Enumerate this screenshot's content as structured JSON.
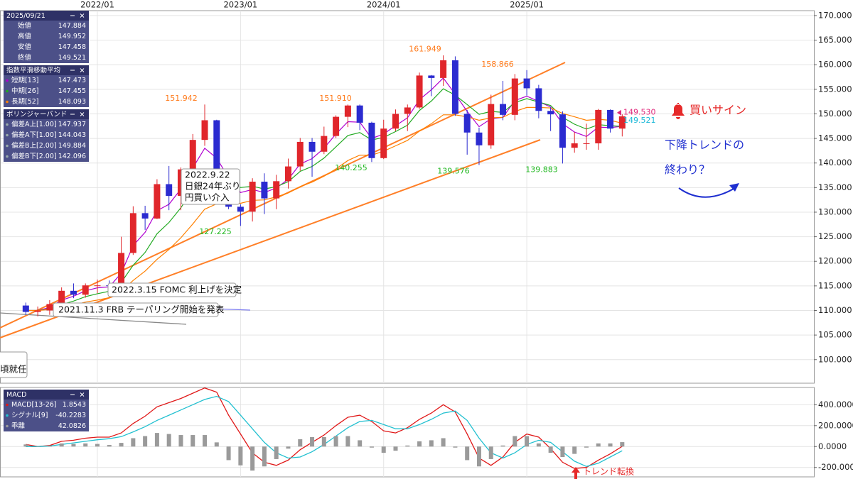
{
  "chart_data": [
    {
      "type": "candlestick",
      "categories": [
        null,
        null,
        null,
        null,
        null,
        null,
        "2022/01",
        null,
        null,
        null,
        null,
        null,
        null,
        null,
        null,
        null,
        null,
        null,
        "2023/01",
        null,
        null,
        null,
        null,
        null,
        null,
        null,
        null,
        null,
        null,
        null,
        "2024/01",
        null,
        null,
        null,
        null,
        null,
        null,
        null,
        null,
        null,
        null,
        null,
        "2025/01",
        null,
        null,
        null,
        null,
        null,
        null,
        null,
        null
      ],
      "open": [
        111.0,
        109.7,
        110.0,
        111.3,
        114.0,
        113.2,
        115.1,
        115.1,
        115.0,
        121.7,
        129.8,
        128.7,
        135.7,
        133.3,
        138.7,
        144.7,
        148.7,
        138.1,
        131.1,
        130.1,
        136.2,
        132.8,
        136.3,
        139.3,
        144.3,
        142.3,
        145.5,
        149.4,
        151.7,
        148.2,
        141.0,
        147.0,
        150.0,
        151.3,
        157.8,
        157.3,
        160.9,
        150.0,
        146.2,
        143.6,
        152.0,
        149.8,
        157.2,
        155.2,
        150.6,
        149.9,
        143.1,
        144.0,
        144.0,
        150.8,
        147.0
      ],
      "high": [
        111.6,
        110.8,
        112.1,
        114.7,
        115.5,
        115.5,
        116.3,
        116.1,
        125.0,
        131.2,
        131.3,
        136.7,
        139.4,
        139.1,
        145.9,
        151.9,
        148.8,
        138.2,
        131.6,
        136.9,
        137.9,
        137.6,
        140.9,
        145.1,
        145.1,
        147.4,
        149.7,
        151.9,
        151.9,
        148.4,
        148.8,
        150.9,
        151.9,
        158.4,
        157.9,
        161.9,
        161.7,
        150.8,
        147.2,
        153.9,
        156.7,
        158.1,
        158.9,
        155.9,
        151.3,
        150.5,
        146.3,
        148.0,
        151.0,
        150.9,
        149.9
      ],
      "low": [
        109.1,
        108.8,
        109.1,
        111.0,
        112.5,
        112.6,
        113.5,
        114.2,
        114.7,
        121.3,
        126.4,
        128.6,
        130.4,
        130.4,
        138.0,
        143.5,
        137.7,
        130.6,
        127.2,
        128.1,
        129.6,
        130.6,
        134.8,
        138.4,
        137.2,
        141.8,
        145.1,
        147.3,
        146.7,
        140.2,
        140.8,
        146.5,
        146.5,
        151.0,
        153.6,
        155.7,
        149.6,
        141.7,
        139.6,
        142.9,
        148.7,
        148.7,
        153.7,
        149.1,
        146.5,
        139.9,
        142.1,
        142.7,
        142.7,
        146.2,
        145.4
      ],
      "close": [
        109.7,
        110.0,
        111.3,
        114.0,
        113.2,
        115.1,
        115.1,
        115.0,
        121.7,
        129.8,
        128.7,
        135.7,
        133.3,
        138.7,
        144.7,
        148.7,
        138.1,
        131.1,
        130.1,
        136.2,
        132.8,
        136.3,
        139.3,
        144.3,
        142.3,
        145.5,
        149.4,
        151.7,
        148.2,
        141.0,
        147.0,
        150.0,
        151.3,
        157.8,
        157.3,
        160.9,
        150.0,
        146.2,
        143.6,
        152.0,
        149.8,
        157.2,
        155.2,
        150.6,
        149.9,
        143.1,
        144.0,
        144.0,
        150.8,
        147.0,
        149.5
      ],
      "up_color": "#e0262b",
      "down_color": "#2b2bd0",
      "series": [
        {
          "name": "短期[13]",
          "color": "#b000d0",
          "values": [
            110.0,
            110.0,
            110.6,
            112.1,
            112.9,
            114.0,
            114.6,
            114.8,
            117.6,
            123.2,
            125.9,
            130.3,
            131.6,
            134.7,
            139.0,
            143.0,
            141.0,
            137.0,
            134.0,
            134.6,
            134.0,
            134.9,
            136.7,
            139.8,
            140.9,
            143.0,
            145.9,
            148.4,
            148.3,
            145.0,
            145.9,
            147.6,
            149.2,
            152.9,
            154.9,
            157.3,
            154.0,
            150.5,
            147.4,
            149.0,
            149.3,
            152.7,
            153.6,
            152.5,
            151.4,
            148.0,
            146.3,
            145.4,
            147.3,
            147.2,
            147.473
          ]
        },
        {
          "name": "中期[26]",
          "color": "#22aa22",
          "values": [
            110.0,
            110.0,
            110.3,
            111.2,
            111.9,
            112.8,
            113.4,
            113.9,
            115.7,
            119.2,
            121.8,
            125.6,
            127.9,
            130.9,
            134.5,
            138.4,
            138.3,
            136.5,
            135.0,
            135.3,
            134.7,
            135.2,
            136.2,
            138.3,
            139.3,
            141.0,
            143.3,
            145.6,
            146.2,
            144.7,
            145.2,
            146.4,
            147.7,
            150.7,
            152.6,
            155.1,
            153.8,
            151.9,
            149.9,
            150.5,
            150.3,
            152.3,
            153.1,
            152.4,
            151.7,
            149.3,
            147.9,
            146.9,
            147.8,
            147.6,
            147.455
          ]
        },
        {
          "name": "長期[52]",
          "color": "#ff8000",
          "values": [
            110.0,
            110.0,
            110.2,
            110.7,
            111.1,
            111.7,
            112.1,
            112.6,
            113.9,
            116.1,
            118.0,
            120.4,
            122.4,
            124.8,
            127.6,
            130.6,
            131.7,
            131.8,
            131.8,
            132.4,
            132.5,
            133.1,
            133.9,
            135.2,
            136.1,
            137.3,
            138.8,
            140.5,
            141.6,
            141.6,
            142.4,
            143.5,
            144.6,
            146.5,
            148.0,
            149.8,
            149.8,
            149.4,
            148.7,
            149.2,
            149.3,
            150.5,
            151.3,
            151.3,
            151.2,
            150.1,
            149.4,
            148.7,
            148.9,
            148.7,
            148.093
          ]
        }
      ],
      "ylim": [
        95.2,
        171
      ],
      "yticks": [
        {
          "value": 100,
          "label": "100.000"
        },
        {
          "value": 105,
          "label": "105.000"
        },
        {
          "value": 110,
          "label": "110.000"
        },
        {
          "value": 115,
          "label": "115.000"
        },
        {
          "value": 120,
          "label": "120.000"
        },
        {
          "value": 125,
          "label": "125.000"
        },
        {
          "value": 130,
          "label": "130.000"
        },
        {
          "value": 135,
          "label": "135.000"
        },
        {
          "value": 140,
          "label": "140.000"
        },
        {
          "value": 145,
          "label": "145.000"
        },
        {
          "value": 150,
          "label": "150.000"
        },
        {
          "value": 155,
          "label": "155.000"
        },
        {
          "value": 160,
          "label": "160.000"
        },
        {
          "value": 165,
          "label": "165.000"
        },
        {
          "value": 170,
          "label": "170.000"
        }
      ],
      "grid": true,
      "price_labels": [
        {
          "value": 151.942,
          "label": "151.942",
          "color": "#ff7a1a"
        },
        {
          "value": 151.91,
          "label": "151.910",
          "color": "#ff7a1a"
        },
        {
          "value": 161.949,
          "label": "161.949",
          "color": "#ff7a1a"
        },
        {
          "value": 158.866,
          "label": "158.866",
          "color": "#ff7a1a"
        },
        {
          "value": 127.225,
          "label": "127.225",
          "color": "#22b822"
        },
        {
          "value": 140.255,
          "label": "140.255",
          "color": "#22b822"
        },
        {
          "value": 139.576,
          "label": "139.576",
          "color": "#22b822"
        },
        {
          "value": 139.883,
          "label": "139.883",
          "color": "#22b822"
        }
      ],
      "current_prices": [
        {
          "value": 149.53,
          "label": "149.530",
          "color": "#e0267a"
        },
        {
          "value": 149.521,
          "label": "149.521",
          "color": "#1ab8d8"
        }
      ],
      "annotations": {
        "intervention": [
          "2022.9.22",
          "日銀24年ぶり",
          "円買い介入"
        ],
        "fomc": "2022.3.15 FOMC 利上げを決定",
        "frb": "2021.11.3 FRB テーパリング開始を発表",
        "inaug": "頃就任",
        "buy": "買いサイン",
        "trend_end": [
          "下降トレンドの",
          "終わり？"
        ],
        "turn": "トレンド転換"
      }
    },
    {
      "type": "macd",
      "series": [
        {
          "name": "MACD[13-26]",
          "color": "#e01818",
          "values": [
            20,
            0,
            10,
            50,
            60,
            80,
            90,
            90,
            130,
            220,
            290,
            380,
            420,
            460,
            510,
            560,
            520,
            300,
            120,
            -60,
            -150,
            -180,
            -130,
            -30,
            40,
            110,
            200,
            280,
            300,
            240,
            150,
            130,
            180,
            260,
            320,
            400,
            330,
            120,
            -110,
            -180,
            -100,
            40,
            120,
            90,
            -20,
            -150,
            -210,
            -200,
            -130,
            -70,
            1.8543
          ]
        },
        {
          "name": "シグナル[9]",
          "color": "#22c0d0",
          "values": [
            0,
            0,
            5,
            20,
            35,
            50,
            65,
            75,
            95,
            140,
            190,
            250,
            300,
            350,
            400,
            450,
            480,
            430,
            300,
            170,
            40,
            -60,
            -110,
            -100,
            -50,
            20,
            100,
            180,
            240,
            250,
            210,
            170,
            170,
            210,
            260,
            320,
            340,
            250,
            80,
            -60,
            -110,
            -60,
            20,
            60,
            40,
            -50,
            -140,
            -190,
            -160,
            -100,
            -40.2283
          ]
        },
        {
          "name": "乖離",
          "color": "#9a9a9a",
          "type": "bar",
          "values": [
            20,
            0,
            5,
            30,
            25,
            30,
            25,
            15,
            35,
            80,
            100,
            130,
            120,
            110,
            110,
            110,
            40,
            -130,
            -180,
            -230,
            -190,
            -120,
            -20,
            70,
            90,
            90,
            100,
            100,
            60,
            -10,
            -60,
            -40,
            10,
            50,
            60,
            80,
            -10,
            -130,
            -190,
            -120,
            10,
            100,
            100,
            30,
            -60,
            -100,
            -70,
            -10,
            30,
            30,
            42.0826
          ]
        }
      ],
      "ylim": [
        -290,
        565
      ],
      "yticks": [
        {
          "value": 400,
          "label": "400.0000"
        },
        {
          "value": 200,
          "label": "200.0000"
        },
        {
          "value": 0,
          "label": "0.0000"
        },
        {
          "value": -200,
          "label": "-200.0000"
        }
      ],
      "grid": true
    }
  ],
  "info": {
    "date": "2025/09/21",
    "ohlc": [
      {
        "label": "始値",
        "value": "147.884"
      },
      {
        "label": "高値",
        "value": "149.952"
      },
      {
        "label": "安値",
        "value": "147.458"
      },
      {
        "label": "終値",
        "value": "149.521"
      }
    ],
    "ma_title": "指数平滑移動平均",
    "bb_title": "ボリンジャーバンド",
    "bb": [
      {
        "label": "偏差A上[1.00]",
        "value": "147.937"
      },
      {
        "label": "偏差A下[1.00]",
        "value": "144.043"
      },
      {
        "label": "偏差B上[2.00]",
        "value": "149.884"
      },
      {
        "label": "偏差B下[2.00]",
        "value": "142.096"
      }
    ],
    "macd_title": "MACD"
  }
}
